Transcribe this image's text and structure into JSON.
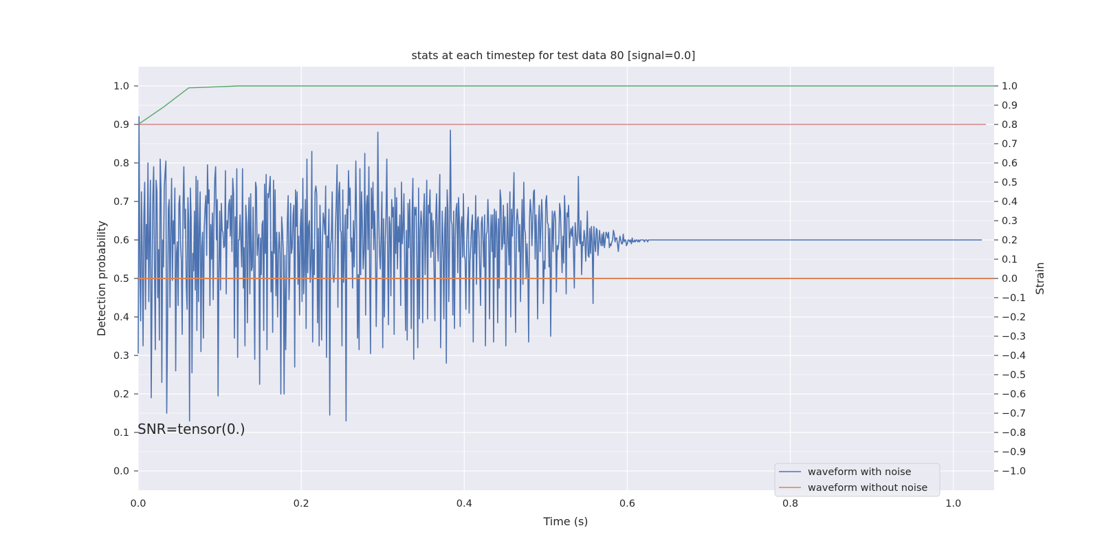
{
  "chart_data": {
    "type": "line",
    "title": "stats at each timestep for test data 80 [signal=0.0]",
    "xlabel": "Time (s)",
    "ylabel_left": "Detection probability",
    "ylabel_right": "Strain",
    "xlim": [
      0.0,
      1.05
    ],
    "ylim_left": [
      -0.05,
      1.05
    ],
    "ylim_right": [
      -1.1,
      1.1
    ],
    "x_ticks": [
      0.0,
      0.2,
      0.4,
      0.6,
      0.8,
      1.0
    ],
    "x_tick_labels": [
      "0.0",
      "0.2",
      "0.4",
      "0.6",
      "0.8",
      "1.0"
    ],
    "left_ticks": [
      0.0,
      0.1,
      0.2,
      0.3,
      0.4,
      0.5,
      0.6,
      0.7,
      0.8,
      0.9,
      1.0
    ],
    "left_tick_labels": [
      "0.0",
      "0.1",
      "0.2",
      "0.3",
      "0.4",
      "0.5",
      "0.6",
      "0.7",
      "0.8",
      "0.9",
      "1.0"
    ],
    "right_ticks": [
      -1.0,
      -0.9,
      -0.8,
      -0.7,
      -0.6,
      -0.5,
      -0.4,
      -0.3,
      -0.2,
      -0.1,
      0.0,
      0.1,
      0.2,
      0.3,
      0.4,
      0.5,
      0.6,
      0.7,
      0.8,
      0.9,
      1.0
    ],
    "right_tick_labels": [
      "−1.0",
      "−0.9",
      "−0.8",
      "−0.7",
      "−0.6",
      "−0.5",
      "−0.4",
      "−0.3",
      "−0.2",
      "−0.1",
      "0.0",
      "0.1",
      "0.2",
      "0.3",
      "0.4",
      "0.5",
      "0.6",
      "0.7",
      "0.8",
      "0.9",
      "1.0"
    ],
    "grid": true,
    "legend_position": "bottom-right",
    "annotation": "SNR=tensor(0.)",
    "colors": {
      "background": "#eaeaf2",
      "grid": "#ffffff",
      "noise": "#4c72b0",
      "clean": "#dd8452",
      "probability": "#55a868",
      "threshold": "#c44e52"
    },
    "series": [
      {
        "name": "waveform with noise",
        "axis": "right",
        "x_start": 0.0,
        "x_step": 0.001,
        "values": [
          -0.39,
          0.84,
          0.05,
          -0.22,
          0.45,
          0.12,
          -0.35,
          0.33,
          0.5,
          -0.16,
          0.28,
          0.1,
          0.6,
          -0.12,
          0.24,
          0.51,
          -0.62,
          -0.05,
          0.43,
          0.58,
          0.09,
          -0.37,
          0.51,
          0.45,
          -0.1,
          0.15,
          -0.32,
          0.62,
          0.46,
          -0.54,
          0.2,
          0.06,
          0.48,
          0.55,
          0.61,
          -0.7,
          -0.25,
          0.36,
          0.41,
          -0.15,
          0.24,
          0.52,
          -0.01,
          0.3,
          0.18,
          0.47,
          -0.48,
          0.13,
          0.19,
          -0.14,
          0.39,
          0.43,
          0.18,
          0.09,
          -0.29,
          0.37,
          0.58,
          0.26,
          0.36,
          -0.04,
          -0.16,
          0.42,
          0.29,
          -0.74,
          0.47,
          0.31,
          -0.49,
          0.13,
          0.04,
          0.35,
          -0.06,
          0.53,
          -0.27,
          0.51,
          -0.12,
          0.27,
          0.45,
          -0.38,
          0.16,
          0.24,
          -0.31,
          0.26,
          0.36,
          0.43,
          0.12,
          0.59,
          0.39,
          0.46,
          -0.14,
          0.28,
          0.1,
          0.34,
          -0.11,
          0.32,
          0.52,
          0.58,
          0.2,
          0.41,
          -0.61,
          0.05,
          0.35,
          -0.06,
          0.39,
          0.25,
          0.24,
          0.16,
          0.17,
          0.56,
          -0.08,
          0.3,
          0.26,
          0.38,
          0.41,
          0.22,
          0.43,
          0.14,
          0.52,
          0.44,
          -0.31,
          0.32,
          0.06,
          0.57,
          -0.41,
          0.2,
          0.2,
          0.33,
          0.19,
          0.06,
          0.57,
          -0.05,
          0.16,
          -0.35,
          0.38,
          0.29,
          -0.23,
          0.27,
          0.42,
          -0.08,
          0.44,
          0.04,
          0.06,
          0.37,
          -0.01,
          -0.42,
          0.5,
          0.47,
          0.12,
          0.2,
          0.23,
          -0.55,
          0.21,
          0.02,
          0.28,
          0.3,
          -0.27,
          0.49,
          0.13,
          0.54,
          -0.37,
          0.44,
          0.42,
          0.47,
          0.53,
          -0.07,
          0.14,
          -0.28,
          0.51,
          0.13,
          0.46,
          -0.09,
          0.24,
          -0.2,
          0.13,
          0.24,
          0.13,
          -0.6,
          0.32,
          0.25,
          0.14,
          -0.6,
          0.12,
          -0.37,
          -0.01,
          0.3,
          0.43,
          -0.11,
          0.05,
          0.39,
          0.13,
          0.16,
          0.33,
          0.38,
          -0.46,
          0.46,
          0.27,
          0.45,
          -0.03,
          0.22,
          -0.19,
          0.27,
          0.36,
          -0.12,
          0.52,
          -0.08,
          0.05,
          0.41,
          -0.26,
          0.62,
          0.03,
          0.27,
          0.3,
          -0.02,
          0.08,
          0.66,
          -0.33,
          0.15,
          0.02,
          0.45,
          0.48,
          0.44,
          -0.23,
          0.26,
          -0.35,
          0.38,
          0.17,
          -0.32,
          0.18,
          0.34,
          0.3,
          0.23,
          0.48,
          -0.41,
          0.22,
          0.16,
          0.36,
          -0.71,
          0.17,
          0.21,
          0.45,
          0.02,
          -0.02,
          0.03,
          0.26,
          0.4,
          0.59,
          -0.15,
          0.44,
          0.5,
          0.25,
          0.24,
          -0.35,
          0.46,
          -0.02,
          0.19,
          0.33,
          -0.74,
          0.36,
          0.26,
          0.56,
          0.38,
          0.47,
          0.14,
          0.21,
          -0.05,
          0.3,
          0.06,
          0.29,
          0.61,
          0.24,
          -0.31,
          0.02,
          -0.37,
          0.57,
          0.02,
          0.45,
          0.29,
          0.05,
          0.14,
          0.65,
          -0.19,
          0.38,
          0.43,
          0.15,
          0.58,
          0.02,
          -0.39,
          0.47,
          0.26,
          0.5,
          0.15,
          0.35,
          0.18,
          -0.25,
          0.07,
          0.76,
          0.33,
          0.14,
          0.05,
          0.22,
          0.45,
          -0.36,
          0.31,
          -0.2,
          0.18,
          0.32,
          0.62,
          0.14,
          -0.24,
          0.32,
          0.28,
          -0.09,
          0.41,
          0.32,
          0.37,
          -0.29,
          0.47,
          0.13,
          0.42,
          0.05,
          0.27,
          0.19,
          0.33,
          -0.14,
          0.5,
          0.18,
          0.26,
          0.44,
          0.05,
          -0.27,
          0.25,
          -0.32,
          0.39,
          0.16,
          0.41,
          0.18,
          -0.26,
          0.34,
          0.52,
          -0.42,
          0.37,
          0.33,
          0.37,
          0.04,
          -0.36,
          0.47,
          -0.21,
          0.25,
          0.35,
          0.27,
          -0.23,
          0.32,
          0.44,
          0.02,
          0.26,
          0.51,
          -0.21,
          0.38,
          0.34,
          0.46,
          0.11,
          0.34,
          0.14,
          0.3,
          0.04,
          -0.22,
          0.31,
          0.44,
          0.19,
          0.09,
          0.35,
          0.54,
          -0.36,
          0.05,
          0.35,
          0.16,
          -0.21,
          0.26,
          0.37,
          -0.44,
          0.46,
          0.35,
          -0.12,
          0.19,
          0.77,
          0.3,
          0.28,
          -0.19,
          0.35,
          -0.26,
          0.22,
          0.36,
          0.39,
          0.03,
          0.42,
          0.3,
          -0.25,
          0.27,
          0.32,
          0.11,
          0.44,
          0.12,
          0.1,
          -0.16,
          0.18,
          0.3,
          0.37,
          -0.18,
          0.09,
          0.17,
          0.28,
          0.33,
          -0.33,
          0.25,
          0.13,
          0.43,
          -0.03,
          0.3,
          0.32,
          0.23,
          0.05,
          -0.14,
          0.29,
          0.32,
          0.19,
          0.06,
          0.33,
          -0.35,
          0.23,
          0.24,
          0.41,
          0.27,
          -0.21,
          0.2,
          0.33,
          0.14,
          0.33,
          -0.33,
          0.36,
          0.11,
          0.35,
          0.25,
          -0.23,
          0.31,
          -0.05,
          0.46,
          0.41,
          0.15,
          0.17,
          0.38,
          0.18,
          0.32,
          -0.35,
          0.14,
          0.39,
          0.18,
          0.07,
          0.45,
          -0.2,
          0.36,
          0.22,
          0.38,
          0.55,
          0.08,
          -0.28,
          0.29,
          0.36,
          0.3,
          0.14,
          0.28,
          -0.12,
          0.21,
          0.41,
          -0.03,
          0.5,
          0.26,
          0.23,
          0.0,
          0.18,
          0.05,
          -0.33,
          0.3,
          0.41,
          0.34,
          0.17,
          0.29,
          0.45,
          0.46,
          0.1,
          0.33,
          0.18,
          -0.21,
          0.29,
          0.38,
          0.14,
          0.27,
          0.41,
          0.3,
          -0.13,
          0.09,
          0.05,
          0.4,
          0.43,
          0.29,
          0.28,
          0.06,
          0.26,
          -0.3,
          0.13,
          0.35,
          0.14,
          0.33,
          0.35,
          0.3,
          -0.07,
          0.17,
          0.15,
          0.19,
          0.39,
          0.35,
          0.19,
          0.03,
          0.22,
          0.08,
          0.43,
          0.31,
          -0.08,
          0.34,
          0.32,
          0.38,
          0.16,
          0.23,
          0.26,
          0.22,
          0.27,
          0.14,
          -0.05,
          0.29,
          0.23,
          0.17,
          0.2,
          0.53,
          0.22,
          0.18,
          0.3,
          0.02,
          0.19,
          0.17,
          0.25,
          0.21,
          0.09,
          0.2,
          0.35,
          0.12,
          0.11,
          0.26,
          0.13,
          0.27,
          0.19,
          -0.13,
          0.27,
          0.19,
          0.14,
          0.26,
          0.25,
          0.12,
          0.18,
          0.25,
          0.19,
          0.17,
          0.23,
          0.17,
          0.24,
          0.16,
          0.2,
          0.24,
          0.23,
          0.21,
          0.24,
          0.16,
          0.18,
          0.17,
          0.19,
          0.2,
          0.25,
          0.23,
          0.19,
          0.21,
          0.21,
          0.18,
          0.14,
          0.19,
          0.22,
          0.2,
          0.18,
          0.18,
          0.23,
          0.19,
          0.2,
          0.2,
          0.17,
          0.18,
          0.2,
          0.2,
          0.19,
          0.2,
          0.18,
          0.21,
          0.19,
          0.19,
          0.2,
          0.19,
          0.2,
          0.2,
          0.19,
          0.2,
          0.19,
          0.2,
          0.2,
          0.2,
          0.2,
          0.2,
          0.19,
          0.2,
          0.2,
          0.2,
          0.19,
          0.2,
          0.2,
          0.2,
          0.2,
          0.2,
          0.2,
          0.2,
          0.2,
          0.2,
          0.2,
          0.2,
          0.2,
          0.2,
          0.2,
          0.2,
          0.2,
          0.2,
          0.2,
          0.2,
          0.2,
          0.2,
          0.2,
          0.2,
          0.2,
          0.2,
          0.2,
          0.2,
          0.2,
          0.2,
          0.2,
          0.2,
          0.2,
          0.2,
          0.2,
          0.2,
          0.2,
          0.2,
          0.2,
          0.2,
          0.2,
          0.2,
          0.2,
          0.2,
          0.2,
          0.2,
          0.2,
          0.2,
          0.2,
          0.2,
          0.2,
          0.2,
          0.2,
          0.2,
          0.2,
          0.2,
          0.2,
          0.2,
          0.2,
          0.2,
          0.2,
          0.2,
          0.2,
          0.2,
          0.2,
          0.2,
          0.2,
          0.2,
          0.2,
          0.2,
          0.2,
          0.2,
          0.2,
          0.2,
          0.2,
          0.2,
          0.2,
          0.2,
          0.2,
          0.2,
          0.2,
          0.2,
          0.2,
          0.2,
          0.2,
          0.2,
          0.2,
          0.2,
          0.2,
          0.2,
          0.2,
          0.2,
          0.2,
          0.2,
          0.2,
          0.2,
          0.2,
          0.2,
          0.2,
          0.2,
          0.2,
          0.2,
          0.2,
          0.2,
          0.2,
          0.2,
          0.2,
          0.2,
          0.2,
          0.2,
          0.2,
          0.2,
          0.2,
          0.2,
          0.2,
          0.2,
          0.2,
          0.2,
          0.2,
          0.2,
          0.2,
          0.2,
          0.2,
          0.2,
          0.2,
          0.2,
          0.2,
          0.2,
          0.2,
          0.2,
          0.2,
          0.2,
          0.2,
          0.2,
          0.2,
          0.2,
          0.2,
          0.2,
          0.2,
          0.2,
          0.2,
          0.2,
          0.2,
          0.2,
          0.2,
          0.2,
          0.2,
          0.2,
          0.2,
          0.2,
          0.2,
          0.2,
          0.2,
          0.2,
          0.2,
          0.2,
          0.2,
          0.2,
          0.2,
          0.2,
          0.2,
          0.2,
          0.2,
          0.2,
          0.2,
          0.2,
          0.2,
          0.2,
          0.2,
          0.2,
          0.2,
          0.2,
          0.2,
          0.2,
          0.2,
          0.2,
          0.2,
          0.2,
          0.2,
          0.2,
          0.2,
          0.2,
          0.2,
          0.2,
          0.2,
          0.2,
          0.2,
          0.2,
          0.2,
          0.2,
          0.2,
          0.2,
          0.2,
          0.2,
          0.2,
          0.2,
          0.2,
          0.2,
          0.2,
          0.2,
          0.2,
          0.2,
          0.2,
          0.2,
          0.2,
          0.2,
          0.2,
          0.2,
          0.2,
          0.2,
          0.2,
          0.2,
          0.2,
          0.2,
          0.2,
          0.2,
          0.2,
          0.2,
          0.2,
          0.2,
          0.2,
          0.2,
          0.2,
          0.2,
          0.2,
          0.2,
          0.2,
          0.2,
          0.2,
          0.2,
          0.2,
          0.2,
          0.2,
          0.2,
          0.2,
          0.2,
          0.2,
          0.2,
          0.2,
          0.2,
          0.2,
          0.2,
          0.2,
          0.2,
          0.2,
          0.2,
          0.2,
          0.2,
          0.2,
          0.2,
          0.2,
          0.2,
          0.2,
          0.2,
          0.2,
          0.2,
          0.2,
          0.2,
          0.2,
          0.2,
          0.2,
          0.2,
          0.2,
          0.2,
          0.2,
          0.2,
          0.2,
          0.2,
          0.2,
          0.2,
          0.2,
          0.2,
          0.2,
          0.2,
          0.2,
          0.2,
          0.2,
          0.2,
          0.2,
          0.2,
          0.2,
          0.2,
          0.2,
          0.2,
          0.2,
          0.2,
          0.2,
          0.2,
          0.2,
          0.2,
          0.2,
          0.2,
          0.2,
          0.2,
          0.2,
          0.2,
          0.2,
          0.2,
          0.2,
          0.2,
          0.2,
          0.2,
          0.2,
          0.2,
          0.2,
          0.2,
          0.2,
          0.2,
          0.2,
          0.2,
          0.2,
          0.2,
          0.2,
          0.2,
          0.2,
          0.2,
          0.2,
          0.2,
          0.2,
          0.2,
          0.2,
          0.2,
          0.2,
          0.2,
          0.2,
          0.2,
          0.2,
          0.2,
          0.2,
          0.2,
          0.2,
          0.2,
          0.2,
          0.2,
          0.2,
          0.2,
          0.2,
          0.2,
          0.2,
          0.2,
          0.2,
          0.2,
          0.2,
          0.2,
          0.2,
          0.2,
          0.2,
          0.2,
          0.2,
          0.2,
          0.2,
          0.2,
          0.2,
          0.2,
          0.2,
          0.2,
          0.2,
          0.2,
          0.2,
          0.2,
          0.2,
          0.2,
          0.2,
          0.2,
          0.2,
          0.2,
          0.2,
          0.2,
          0.2,
          0.2,
          0.2,
          0.2,
          0.2,
          0.2,
          0.2,
          0.2,
          0.2,
          0.2,
          0.2,
          0.2,
          0.2,
          0.2,
          0.2,
          0.2,
          0.2,
          0.2,
          0.2,
          0.2,
          0.2,
          0.2,
          0.2,
          0.2,
          0.2,
          0.2,
          0.2,
          0.2,
          0.2,
          0.2,
          0.2,
          0.2,
          0.2,
          0.2,
          0.2,
          0.2,
          0.2,
          0.2,
          0.2,
          0.2,
          0.2,
          0.2,
          0.2
        ]
      },
      {
        "name": "waveform without noise",
        "axis": "right",
        "x": [
          0.0,
          1.05
        ],
        "values": [
          0.0,
          0.0
        ]
      },
      {
        "axis": "left",
        "x": [
          0.0,
          0.031,
          0.062,
          0.124,
          0.186,
          0.248,
          1.05
        ],
        "values": [
          0.9,
          0.945,
          0.995,
          1.0,
          1.0,
          1.0,
          1.0
        ]
      },
      {
        "axis": "left",
        "x": [
          0.0,
          1.04
        ],
        "values": [
          0.9,
          0.9
        ]
      }
    ]
  }
}
